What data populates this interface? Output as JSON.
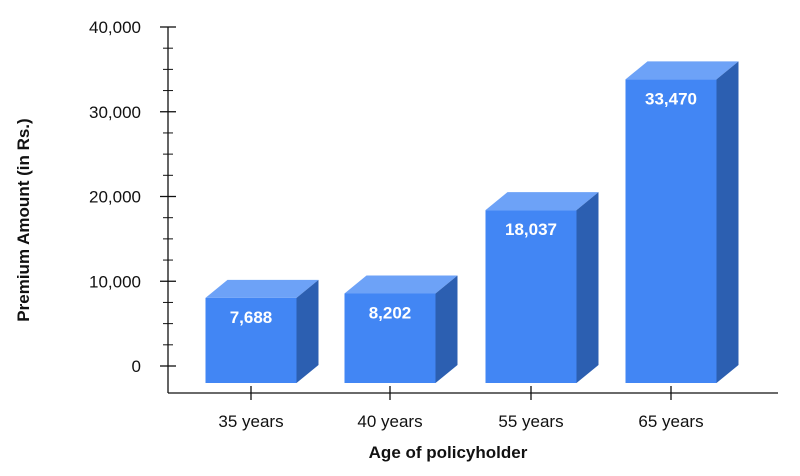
{
  "chart_data": {
    "type": "bar",
    "title": "",
    "xlabel": "Age of policyholder",
    "ylabel": "Premium Amount (in Rs.)",
    "categories": [
      "35 years",
      "40 years",
      "55 years",
      "65 years"
    ],
    "values": [
      7688,
      8202,
      18037,
      33470
    ],
    "value_labels": [
      "7,688",
      "8,202",
      "18,037",
      "33,470"
    ],
    "ylim": [
      0,
      40000
    ],
    "yticks": [
      0,
      10000,
      20000,
      30000,
      40000
    ],
    "ytick_labels": [
      "0",
      "10,000",
      "20,000",
      "30,000",
      "40,000"
    ],
    "grid": false,
    "legend": "none",
    "style": "3d-bar",
    "colors": {
      "bar_front": "#4286f4",
      "bar_top": "#6da2f7",
      "bar_side": "#2c5fb1",
      "axis": "#111111",
      "label_on_bar": "#ffffff"
    }
  }
}
